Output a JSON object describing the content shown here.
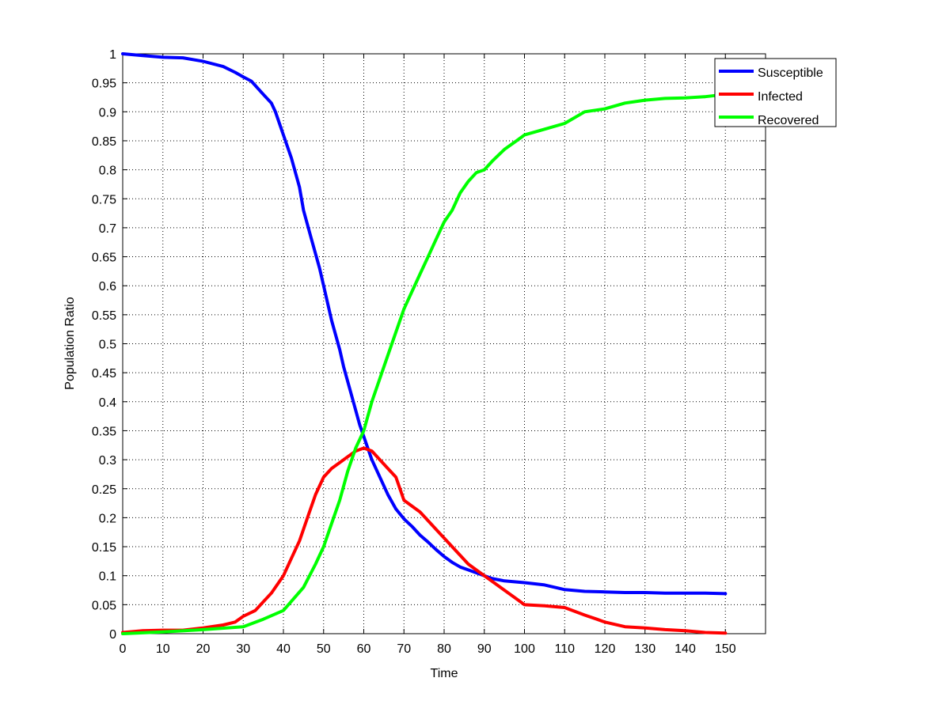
{
  "chart_data": {
    "type": "line",
    "title": "",
    "xlabel": "Time",
    "ylabel": "Population Ratio",
    "xlim": [
      0,
      160
    ],
    "ylim": [
      0,
      1
    ],
    "x_ticks": [
      0,
      10,
      20,
      30,
      40,
      50,
      60,
      70,
      80,
      90,
      100,
      110,
      120,
      130,
      140,
      150
    ],
    "x_tick_labels": [
      "0",
      "10",
      "20",
      "30",
      "40",
      "50",
      "60",
      "70",
      "80",
      "90",
      "100",
      "110",
      "120",
      "130",
      "140",
      "150"
    ],
    "y_ticks": [
      0,
      0.05,
      0.1,
      0.15,
      0.2,
      0.25,
      0.3,
      0.35,
      0.4,
      0.45,
      0.5,
      0.55,
      0.6,
      0.65,
      0.7,
      0.75,
      0.8,
      0.85,
      0.9,
      0.95,
      1
    ],
    "y_tick_labels": [
      "0",
      "0.05",
      "0.1",
      "0.15",
      "0.2",
      "0.25",
      "0.3",
      "0.35",
      "0.4",
      "0.45",
      "0.5",
      "0.55",
      "0.6",
      "0.65",
      "0.7",
      "0.75",
      "0.8",
      "0.85",
      "0.9",
      "0.95",
      "1"
    ],
    "grid": true,
    "legend_position": "top-right",
    "series": [
      {
        "name": "Susceptible",
        "color": "#0000ff",
        "x": [
          0,
          5,
          10,
          15,
          20,
          25,
          28,
          30,
          32,
          35,
          37,
          38,
          40,
          42,
          44,
          45,
          47,
          49,
          50,
          52,
          54,
          55,
          57,
          59,
          60,
          62,
          64,
          66,
          68,
          70,
          72,
          74,
          76,
          78,
          80,
          82,
          84,
          86,
          88,
          90,
          92,
          95,
          100,
          105,
          110,
          115,
          120,
          125,
          130,
          135,
          140,
          145,
          150
        ],
        "y": [
          1.0,
          0.997,
          0.994,
          0.993,
          0.987,
          0.978,
          0.968,
          0.96,
          0.953,
          0.93,
          0.915,
          0.9,
          0.86,
          0.82,
          0.77,
          0.73,
          0.68,
          0.63,
          0.6,
          0.54,
          0.49,
          0.46,
          0.41,
          0.36,
          0.34,
          0.3,
          0.27,
          0.24,
          0.215,
          0.198,
          0.185,
          0.17,
          0.158,
          0.145,
          0.133,
          0.123,
          0.115,
          0.11,
          0.105,
          0.1,
          0.095,
          0.091,
          0.088,
          0.084,
          0.076,
          0.073,
          0.072,
          0.071,
          0.071,
          0.07,
          0.07,
          0.07,
          0.069
        ]
      },
      {
        "name": "Infected",
        "color": "#ff0000",
        "x": [
          0,
          5,
          10,
          15,
          20,
          25,
          28,
          30,
          33,
          35,
          37,
          40,
          42,
          44,
          46,
          48,
          50,
          52,
          54,
          56,
          58,
          60,
          62,
          64,
          66,
          68,
          70,
          72,
          74,
          76,
          78,
          80,
          82,
          84,
          86,
          88,
          90,
          92,
          95,
          98,
          100,
          105,
          110,
          115,
          118,
          120,
          125,
          130,
          135,
          140,
          145,
          150
        ],
        "y": [
          0.002,
          0.005,
          0.006,
          0.006,
          0.01,
          0.015,
          0.02,
          0.03,
          0.04,
          0.055,
          0.07,
          0.1,
          0.13,
          0.16,
          0.2,
          0.24,
          0.27,
          0.285,
          0.295,
          0.305,
          0.315,
          0.32,
          0.315,
          0.3,
          0.285,
          0.27,
          0.23,
          0.22,
          0.21,
          0.195,
          0.18,
          0.165,
          0.15,
          0.135,
          0.12,
          0.11,
          0.1,
          0.09,
          0.075,
          0.06,
          0.05,
          0.048,
          0.045,
          0.032,
          0.025,
          0.02,
          0.012,
          0.01,
          0.007,
          0.005,
          0.002,
          0.001
        ]
      },
      {
        "name": "Recovered",
        "color": "#00ff00",
        "x": [
          0,
          10,
          20,
          30,
          35,
          40,
          45,
          48,
          50,
          52,
          54,
          56,
          58,
          60,
          62,
          64,
          66,
          68,
          70,
          72,
          74,
          76,
          78,
          80,
          82,
          84,
          86,
          88,
          90,
          92,
          95,
          98,
          100,
          105,
          110,
          115,
          120,
          125,
          130,
          135,
          140,
          145,
          150
        ],
        "y": [
          0.0,
          0.003,
          0.007,
          0.012,
          0.025,
          0.04,
          0.08,
          0.12,
          0.15,
          0.19,
          0.23,
          0.28,
          0.32,
          0.35,
          0.4,
          0.44,
          0.48,
          0.52,
          0.56,
          0.59,
          0.62,
          0.65,
          0.68,
          0.71,
          0.73,
          0.76,
          0.78,
          0.795,
          0.8,
          0.815,
          0.835,
          0.85,
          0.86,
          0.87,
          0.88,
          0.9,
          0.905,
          0.915,
          0.92,
          0.923,
          0.924,
          0.926,
          0.93
        ]
      }
    ]
  }
}
